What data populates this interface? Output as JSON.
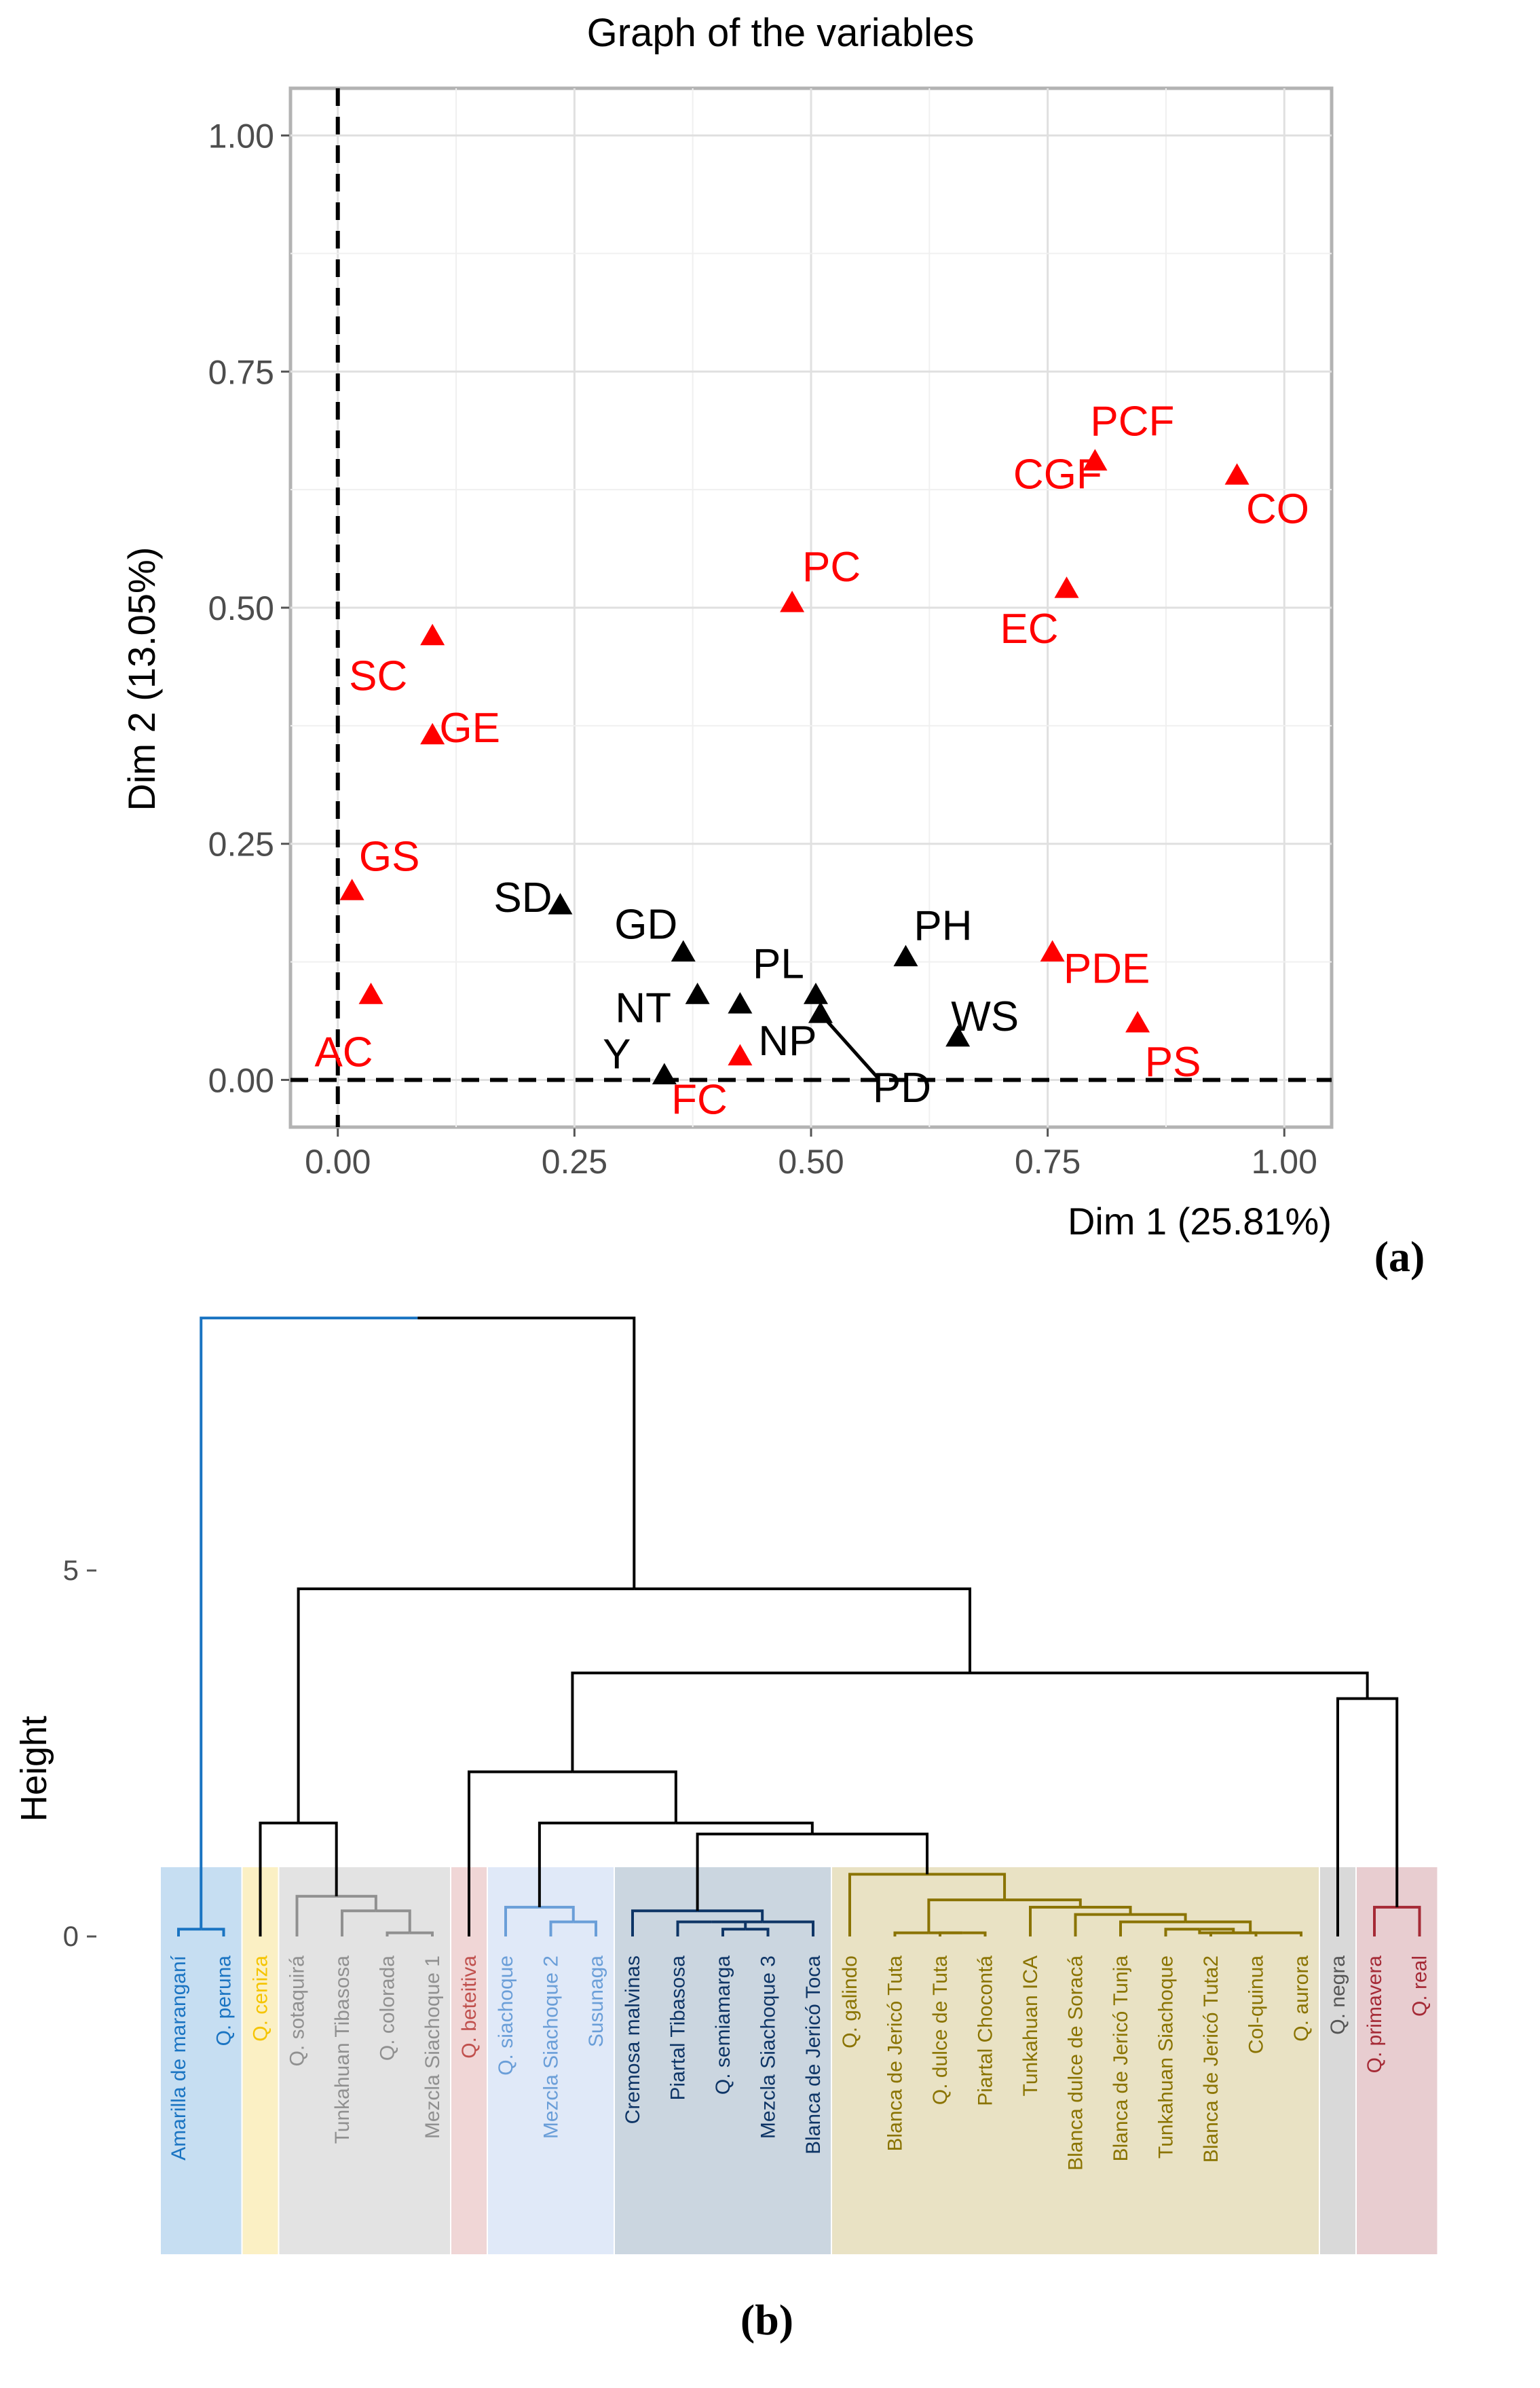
{
  "panel_a_label": "(a)",
  "panel_b_label": "(b)",
  "chart_data": [
    {
      "type": "scatter",
      "title": "Graph of the variables",
      "xlabel": "Dim 1 (25.81%)",
      "ylabel": "Dim 2 (13.05%)",
      "xlim": [
        -0.05,
        1.05
      ],
      "ylim": [
        -0.05,
        1.05
      ],
      "xticks": [
        0.0,
        0.25,
        0.5,
        0.75,
        1.0
      ],
      "xtick_labels": [
        "0.00",
        "0.25",
        "0.50",
        "0.75",
        "1.00"
      ],
      "yticks": [
        0.0,
        0.25,
        0.5,
        0.75,
        1.0
      ],
      "ytick_labels": [
        "0.00",
        "0.25",
        "0.50",
        "0.75",
        "1.00"
      ],
      "grid": true,
      "reference_lines": {
        "x": 0,
        "y": 0,
        "style": "dashed"
      },
      "colors": {
        "active": "#ff0000",
        "supplementary": "#000000"
      },
      "series": [
        {
          "name": "red",
          "color": "#ff0000",
          "points": [
            {
              "label": "PCF",
              "x": 0.8,
              "y": 0.655
            },
            {
              "label": "CO",
              "x": 0.95,
              "y": 0.64
            },
            {
              "label": "CGF",
              "x": 0.8,
              "y": 0.655
            },
            {
              "label": "PC",
              "x": 0.48,
              "y": 0.505
            },
            {
              "label": "EC",
              "x": 0.77,
              "y": 0.52
            },
            {
              "label": "SC",
              "x": 0.1,
              "y": 0.47
            },
            {
              "label": "GE",
              "x": 0.1,
              "y": 0.365
            },
            {
              "label": "GS",
              "x": 0.015,
              "y": 0.2
            },
            {
              "label": "AC",
              "x": 0.035,
              "y": 0.09
            },
            {
              "label": "FC",
              "x": 0.425,
              "y": 0.025
            },
            {
              "label": "PDE",
              "x": 0.755,
              "y": 0.135
            },
            {
              "label": "PS",
              "x": 0.845,
              "y": 0.06
            }
          ]
        },
        {
          "name": "black",
          "color": "#000000",
          "points": [
            {
              "label": "SD",
              "x": 0.235,
              "y": 0.185
            },
            {
              "label": "GD",
              "x": 0.365,
              "y": 0.135
            },
            {
              "label": "NT",
              "x": 0.38,
              "y": 0.09
            },
            {
              "label": "PL",
              "x": 0.505,
              "y": 0.09
            },
            {
              "label": "NP",
              "x": 0.425,
              "y": 0.08
            },
            {
              "label": "PD",
              "x": 0.51,
              "y": 0.07
            },
            {
              "label": "PH",
              "x": 0.6,
              "y": 0.13
            },
            {
              "label": "WS",
              "x": 0.655,
              "y": 0.045
            },
            {
              "label": "Y",
              "x": 0.345,
              "y": 0.005
            }
          ]
        }
      ]
    },
    {
      "type": "dendrogram",
      "ylabel": "Height",
      "yticks": [
        0,
        5
      ],
      "ytick_labels": [
        "0",
        "5"
      ],
      "ylim": [
        -0.3,
        9.4
      ],
      "leaves": [
        "Amarilla de maranganí",
        "Q. peruna",
        "Q. ceniza",
        "Q. sotaquirá",
        "Tunkahuan Tibasosa",
        "Q. colorada",
        "Mezcla Siachoque 1",
        "Q. beteitiva",
        "Q. siachoque",
        "Mezcla Siachoque 2",
        "Susunaga",
        "Cremosa malvinas",
        "Piartal Tibasosa",
        "Q. semiamarga",
        "Mezcla Siachoque 3",
        "Blanca de Jericó Toca",
        "Q. galindo",
        "Blanca de Jericó Tuta",
        "Q. dulce de Tuta",
        "Piartal Chocontá",
        "Tunkahuan ICA",
        "Blanca dulce de Soracá",
        "Blanca de Jericó Tunja",
        "Tunkahuan Siachoque",
        "Blanca de Jericó Tuta2",
        "Col-quinua",
        "Q. aurora",
        "Q. negra",
        "Q. primavera",
        "Q. real"
      ],
      "clusters": [
        {
          "name": "c1",
          "color": "#1a74c2",
          "fill": "#c6def2",
          "leaves": [
            0,
            1
          ]
        },
        {
          "name": "c2",
          "color": "#f5c400",
          "fill": "#fbf0c4",
          "leaves": [
            2
          ]
        },
        {
          "name": "c3",
          "color": "#909090",
          "fill": "#e3e3e3",
          "leaves": [
            3,
            4,
            5,
            6
          ]
        },
        {
          "name": "c4",
          "color": "#c0504d",
          "fill": "#f0d6d6",
          "leaves": [
            7
          ]
        },
        {
          "name": "c5",
          "color": "#6a9ed8",
          "fill": "#e0e9f8",
          "leaves": [
            8,
            9,
            10
          ]
        },
        {
          "name": "c6",
          "color": "#0e3566",
          "fill": "#cbd6e0",
          "leaves": [
            11,
            12,
            13,
            14,
            15
          ]
        },
        {
          "name": "c7",
          "color": "#8a7300",
          "fill": "#e9e2c4",
          "leaves": [
            16,
            17,
            18,
            19,
            20,
            21,
            22,
            23,
            24,
            25,
            26
          ]
        },
        {
          "name": "c8",
          "color": "#555555",
          "fill": "#d9d9d9",
          "leaves": [
            27
          ]
        },
        {
          "name": "c9",
          "color": "#a52a36",
          "fill": "#e8cdd0",
          "leaves": [
            28,
            29
          ]
        }
      ],
      "merges": [
        {
          "a": "L0",
          "b": "L1",
          "h": 0.1,
          "color": "#1a74c2"
        },
        {
          "a": "L5",
          "b": "L6",
          "h": 0.05,
          "color": "#909090"
        },
        {
          "a": "L4",
          "b": "M1",
          "h": 0.35,
          "color": "#909090"
        },
        {
          "a": "L3",
          "b": "M2",
          "h": 0.55,
          "color": "#909090"
        },
        {
          "a": "L2",
          "b": "M3",
          "h": 1.55,
          "color": "#000000"
        },
        {
          "a": "L9",
          "b": "L10",
          "h": 0.2,
          "color": "#6a9ed8"
        },
        {
          "a": "L8",
          "b": "M5",
          "h": 0.4,
          "color": "#6a9ed8"
        },
        {
          "a": "L13",
          "b": "L14",
          "h": 0.1,
          "color": "#0e3566"
        },
        {
          "a": "L12",
          "b": "M7",
          "h": 0.2,
          "color": "#0e3566"
        },
        {
          "a": "M8",
          "b": "L15",
          "h": 0.2,
          "color": "#0e3566"
        },
        {
          "a": "L11",
          "b": "M9",
          "h": 0.35,
          "color": "#0e3566"
        },
        {
          "a": "L18",
          "b": "L19",
          "h": 0.05,
          "color": "#8a7300"
        },
        {
          "a": "L17",
          "b": "M11",
          "h": 0.05,
          "color": "#8a7300"
        },
        {
          "a": "L24",
          "b": "L25",
          "h": 0.05,
          "color": "#8a7300"
        },
        {
          "a": "L23",
          "b": "M13",
          "h": 0.1,
          "color": "#8a7300"
        },
        {
          "a": "M14",
          "b": "L26",
          "h": 0.05,
          "color": "#8a7300"
        },
        {
          "a": "L22",
          "b": "M15",
          "h": 0.2,
          "color": "#8a7300"
        },
        {
          "a": "L21",
          "b": "M16",
          "h": 0.3,
          "color": "#8a7300"
        },
        {
          "a": "L20",
          "b": "M17",
          "h": 0.4,
          "color": "#8a7300"
        },
        {
          "a": "M12",
          "b": "M18",
          "h": 0.5,
          "color": "#8a7300"
        },
        {
          "a": "L16",
          "b": "M19",
          "h": 0.85,
          "color": "#8a7300"
        },
        {
          "a": "M10",
          "b": "M20",
          "h": 1.4,
          "color": "#000000"
        },
        {
          "a": "M6",
          "b": "M21",
          "h": 1.55,
          "color": "#000000"
        },
        {
          "a": "L7",
          "b": "M22",
          "h": 2.25,
          "color": "#000000"
        },
        {
          "a": "L28",
          "b": "L29",
          "h": 0.4,
          "color": "#a52a36"
        },
        {
          "a": "L27",
          "b": "M24",
          "h": 3.25,
          "color": "#000000"
        },
        {
          "a": "M23",
          "b": "M25",
          "h": 3.6,
          "color": "#000000"
        },
        {
          "a": "M4",
          "b": "M26",
          "h": 4.75,
          "color": "#000000"
        },
        {
          "a": "M0",
          "b": "M27",
          "h": 8.45,
          "color": "#000000"
        }
      ],
      "top_split_colors": [
        "#1a74c2",
        "#000000"
      ]
    }
  ]
}
